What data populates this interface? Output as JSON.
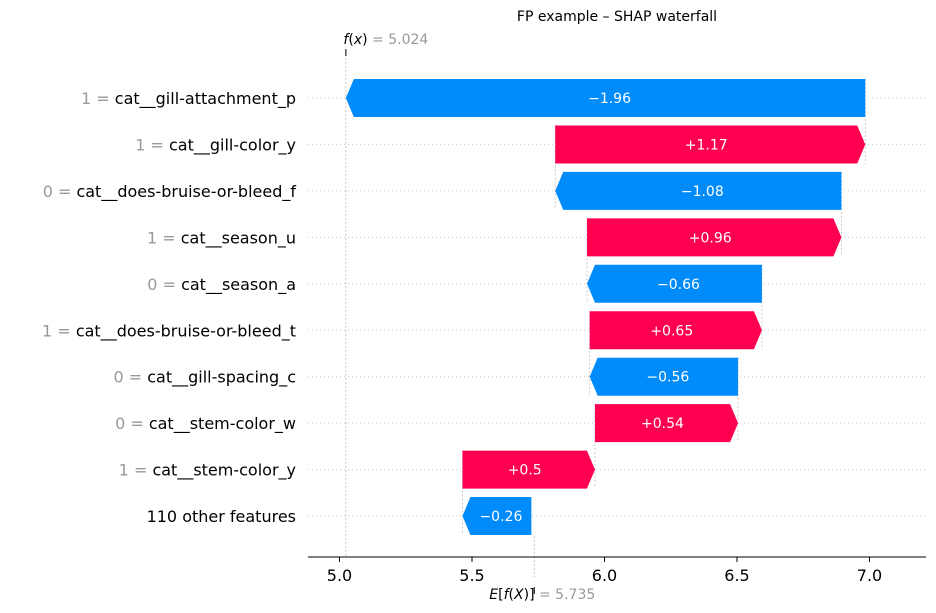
{
  "chart_data": {
    "type": "waterfall",
    "title": "FP example – SHAP waterfall",
    "base_value": 5.735,
    "base_value_label": "5.735",
    "output_value": 5.024,
    "output_value_label": "5.024",
    "xlim": [
      4.9,
      7.2
    ],
    "xticks": [
      5.0,
      5.5,
      6.0,
      6.5,
      7.0
    ],
    "xtick_labels": [
      "5.0",
      "5.5",
      "6.0",
      "6.5",
      "7.0"
    ],
    "colors": {
      "positive": "#ff0051",
      "negative": "#008bfb",
      "grid": "#cccccc",
      "gray_text": "#999999"
    },
    "features": [
      {
        "value": "1",
        "name": "cat__gill-attachment_p",
        "shap": -1.96,
        "label": "−1.96"
      },
      {
        "value": "1",
        "name": "cat__gill-color_y",
        "shap": 1.17,
        "label": "+1.17"
      },
      {
        "value": "0",
        "name": "cat__does-bruise-or-bleed_f",
        "shap": -1.08,
        "label": "−1.08"
      },
      {
        "value": "1",
        "name": "cat__season_u",
        "shap": 0.96,
        "label": "+0.96"
      },
      {
        "value": "0",
        "name": "cat__season_a",
        "shap": -0.66,
        "label": "−0.66"
      },
      {
        "value": "1",
        "name": "cat__does-bruise-or-bleed_t",
        "shap": 0.65,
        "label": "+0.65"
      },
      {
        "value": "0",
        "name": "cat__gill-spacing_c",
        "shap": -0.56,
        "label": "−0.56"
      },
      {
        "value": "0",
        "name": "cat__stem-color_w",
        "shap": 0.54,
        "label": "+0.54"
      },
      {
        "value": "1",
        "name": "cat__stem-color_y",
        "shap": 0.5,
        "label": "+0.5"
      },
      {
        "value": "",
        "name": "110 other features",
        "shap": -0.26,
        "label": "−0.26"
      }
    ]
  }
}
